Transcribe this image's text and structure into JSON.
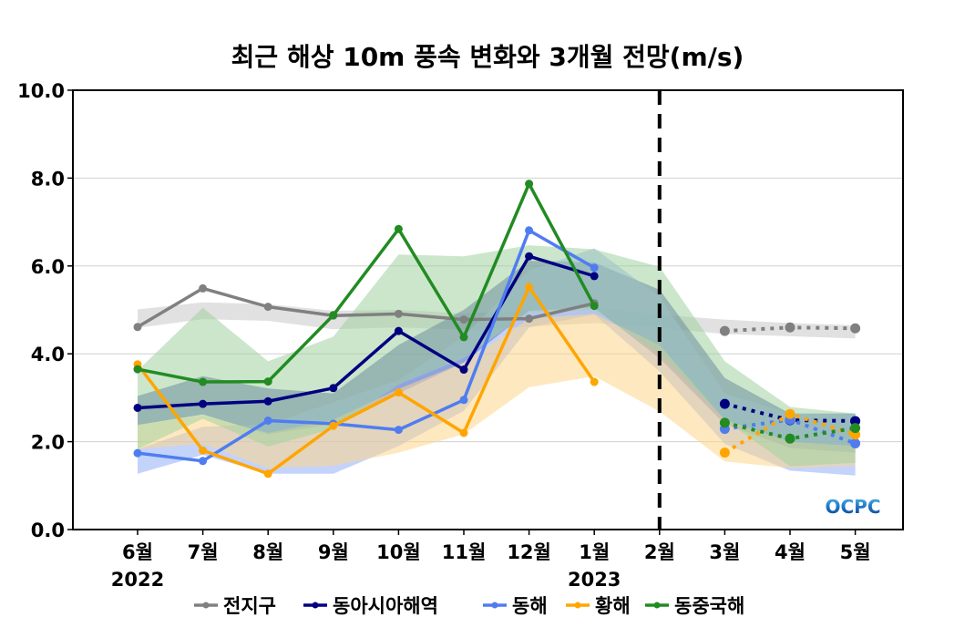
{
  "chart_data": {
    "type": "line",
    "title": "최근 해상 10m 풍속 변화와 3개월 전망(m/s)",
    "xlabel": "",
    "ylabel": "",
    "ylim": [
      0,
      10
    ],
    "yticks": [
      "0.0",
      "2.0",
      "4.0",
      "6.0",
      "8.0",
      "10.0"
    ],
    "ytick_values": [
      0,
      2,
      4,
      6,
      8,
      10
    ],
    "categories": [
      "6월",
      "7월",
      "8월",
      "9월",
      "10월",
      "11월",
      "12월",
      "1월",
      "2월",
      "3월",
      "4월",
      "5월"
    ],
    "year_labels": [
      {
        "label": "2022",
        "category_index": 0
      },
      {
        "label": "2023",
        "category_index": 7
      }
    ],
    "grid": "horizontal",
    "forecast_divider_index": 8,
    "observed_range": [
      0,
      7
    ],
    "forecast_range": [
      9,
      11
    ],
    "legend_position": "bottom",
    "logo": "OCPC",
    "series": [
      {
        "name": "전지구",
        "color": "#808080",
        "band_color": "#c8c8c8",
        "observed": [
          4.61,
          5.49,
          5.07,
          4.87,
          4.91,
          4.78,
          4.8,
          5.15
        ],
        "forecast": [
          4.52,
          4.6,
          4.58
        ],
        "band_upper": [
          5.01,
          5.17,
          5.13,
          4.98,
          5.0,
          4.92,
          4.98,
          5.05,
          4.89,
          4.78,
          4.7,
          4.65
        ],
        "band_lower": [
          4.59,
          4.79,
          4.75,
          4.56,
          4.6,
          4.55,
          4.62,
          4.7,
          4.59,
          4.45,
          4.4,
          4.35
        ]
      },
      {
        "name": "동아시아해역",
        "color": "#000080",
        "band_color": "#2d3f99",
        "observed": [
          2.77,
          2.86,
          2.92,
          3.22,
          4.52,
          3.64,
          6.22,
          5.77
        ],
        "forecast": [
          2.86,
          2.49,
          2.47
        ],
        "band_upper": [
          3.04,
          3.49,
          3.21,
          3.1,
          4.2,
          5.0,
          6.12,
          6.08,
          5.46,
          3.45,
          2.64,
          2.64
        ],
        "band_lower": [
          2.38,
          2.62,
          2.17,
          2.4,
          3.1,
          3.8,
          4.98,
          5.05,
          3.9,
          2.4,
          1.86,
          1.75
        ]
      },
      {
        "name": "동해",
        "color": "#4f7df0",
        "band_color": "#94aff5",
        "observed": [
          1.74,
          1.56,
          2.48,
          2.41,
          2.27,
          2.95,
          6.81,
          5.96
        ],
        "forecast": [
          2.29,
          2.5,
          1.96
        ],
        "band_upper": [
          1.83,
          2.34,
          2.4,
          2.9,
          3.4,
          4.4,
          5.9,
          6.4,
          5.3,
          3.1,
          2.64,
          2.64
        ],
        "band_lower": [
          1.27,
          1.7,
          1.27,
          1.27,
          1.9,
          2.7,
          4.6,
          4.9,
          3.6,
          1.95,
          1.34,
          1.23
        ]
      },
      {
        "name": "황해",
        "color": "#ffa500",
        "band_color": "#fdd58a",
        "observed": [
          3.76,
          1.8,
          1.27,
          2.36,
          3.12,
          2.2,
          5.52,
          3.36
        ],
        "forecast": [
          1.75,
          2.63,
          2.16
        ],
        "band_upper": [
          2.38,
          2.6,
          2.2,
          2.5,
          3.2,
          3.8,
          4.8,
          4.91,
          4.2,
          2.5,
          2.0,
          1.9
        ],
        "band_lower": [
          1.83,
          1.95,
          1.4,
          1.45,
          1.75,
          2.17,
          3.24,
          3.49,
          2.69,
          1.55,
          1.4,
          1.45
        ]
      },
      {
        "name": "동중국해",
        "color": "#228b22",
        "band_color": "#a3d1a0",
        "observed": [
          3.65,
          3.36,
          3.37,
          4.88,
          6.84,
          4.38,
          7.87,
          5.09
        ],
        "forecast": [
          2.43,
          2.07,
          2.31
        ],
        "band_upper": [
          3.62,
          5.05,
          3.83,
          4.39,
          6.26,
          6.22,
          6.47,
          6.38,
          5.98,
          3.83,
          2.79,
          2.64
        ],
        "band_lower": [
          1.83,
          2.52,
          1.89,
          2.3,
          3.3,
          3.9,
          4.95,
          5.0,
          4.0,
          2.5,
          1.44,
          1.52
        ]
      }
    ]
  }
}
